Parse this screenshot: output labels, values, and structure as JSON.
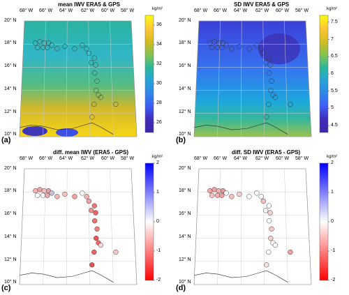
{
  "panels": [
    {
      "id": "a",
      "title": "mean IWV ERA5 & GPS",
      "label": "(a)",
      "unit": "kg/m²",
      "type": "filled",
      "cbar_ticks": [
        "36",
        "34",
        "32",
        "30",
        "28",
        "26"
      ],
      "cbar_range": [
        25,
        37
      ],
      "cbar_colors": [
        "#f9fb0e",
        "#fec736",
        "#d5bb21",
        "#86c34e",
        "#2db89b",
        "#27a3d8",
        "#3086e8",
        "#3d5cf5",
        "#412cba",
        "#3e26a8"
      ]
    },
    {
      "id": "b",
      "title": "SD IWV ERA5 & GPS",
      "label": "(b)",
      "unit": "kg/m²",
      "type": "filled",
      "cbar_ticks": [
        "7.5",
        "7",
        "6.5",
        "6",
        "5.5",
        "5",
        "4.5"
      ],
      "cbar_range": [
        4.3,
        7.7
      ],
      "cbar_colors": [
        "#f9fb0e",
        "#fec736",
        "#d5bb21",
        "#86c34e",
        "#2db89b",
        "#27a3d8",
        "#3086e8",
        "#3d5cf5",
        "#412cba",
        "#3e26a8"
      ]
    },
    {
      "id": "c",
      "title": "diff. mean IWV (ERA5 - GPS)",
      "label": "(c)",
      "unit": "kg/m²",
      "type": "diff",
      "cbar_ticks": [
        "2",
        "1",
        "0",
        "-1",
        "-2"
      ],
      "cbar_range": [
        -2,
        2
      ],
      "cbar_colors": [
        "#0000ff",
        "#8080ff",
        "#ffffff",
        "#ff8080",
        "#ff0000"
      ]
    },
    {
      "id": "d",
      "title": "diff. SD IWV (ERA5 - GPS)",
      "label": "(d)",
      "unit": "kg/m²",
      "type": "diff",
      "cbar_ticks": [
        "2",
        "1",
        "0",
        "-1",
        "-2"
      ],
      "cbar_range": [
        -2,
        2
      ],
      "cbar_colors": [
        "#0000ff",
        "#8080ff",
        "#ffffff",
        "#ff8080",
        "#ff0000"
      ]
    }
  ],
  "lon_labels": [
    "68° W",
    "66° W",
    "64° W",
    "62° W",
    "60° W",
    "58° W"
  ],
  "lat_labels": [
    "20° N",
    "18° N",
    "16° N",
    "14° N",
    "12° N",
    "10° N"
  ]
}
